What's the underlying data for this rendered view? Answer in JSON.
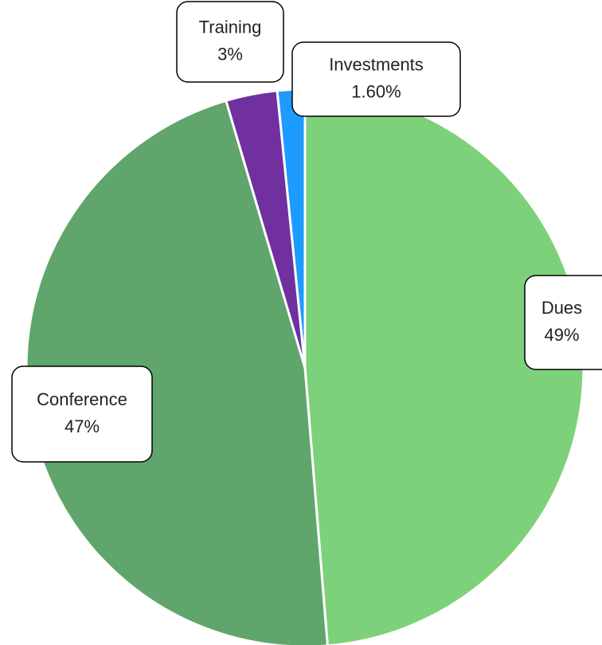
{
  "chart_data": {
    "type": "pie",
    "categories": [
      "Dues",
      "Conference",
      "Training",
      "Investments"
    ],
    "values": [
      49,
      47,
      3,
      1.6
    ],
    "value_labels": [
      "49%",
      "47%",
      "3%",
      "1.60%"
    ],
    "colors": [
      "#7dd17a",
      "#5fa56c",
      "#7030a0",
      "#1e9bff"
    ]
  }
}
